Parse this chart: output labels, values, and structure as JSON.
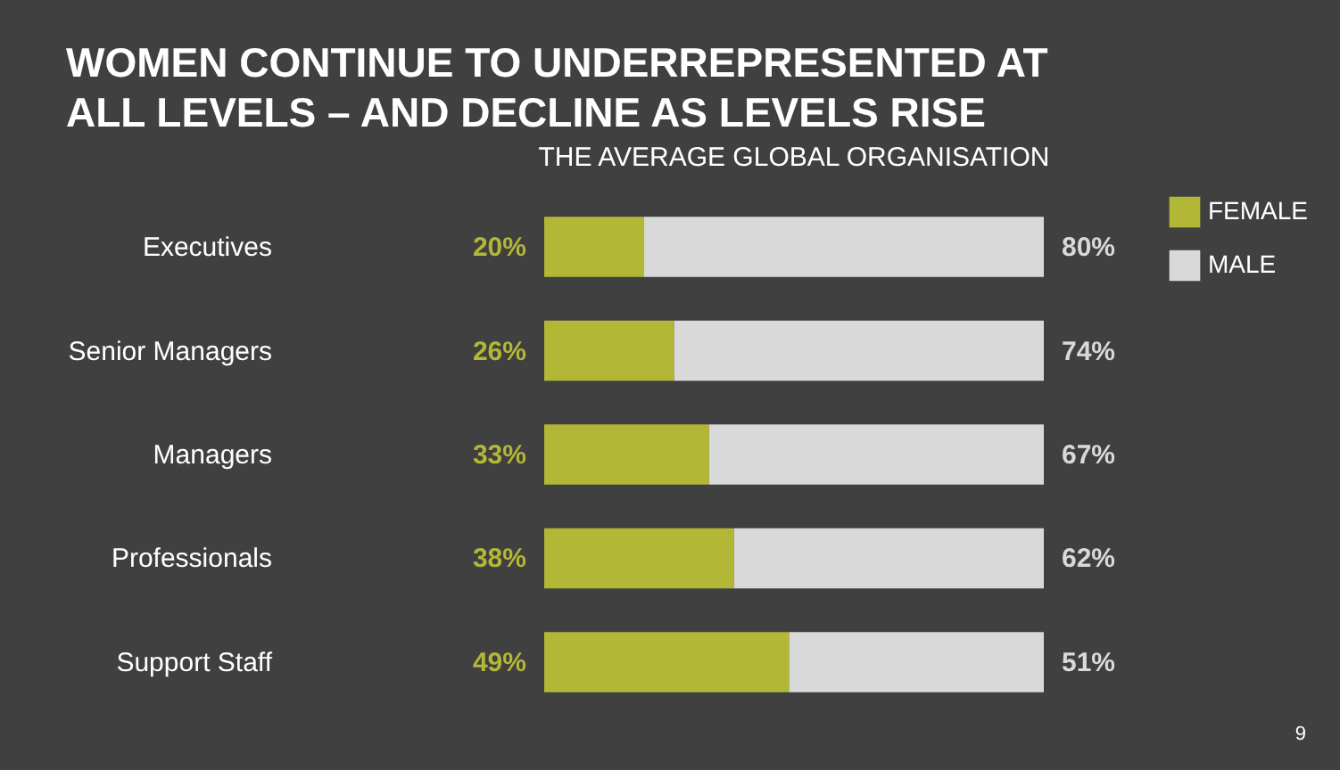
{
  "chart_data": {
    "type": "bar",
    "orientation": "horizontal",
    "stacked": true,
    "title": [
      "WOMEN CONTINUE TO UNDERREPRESENTED AT",
      "ALL LEVELS – AND DECLINE AS LEVELS RISE"
    ],
    "subtitle": "THE AVERAGE GLOBAL ORGANISATION",
    "categories": [
      "Executives",
      "Senior Managers",
      "Managers",
      "Professionals",
      "Support Staff"
    ],
    "series": [
      {
        "name": "FEMALE",
        "color": "#b2b835",
        "values": [
          20,
          26,
          33,
          38,
          49
        ],
        "value_labels": [
          "20%",
          "26%",
          "33%",
          "38%",
          "49%"
        ]
      },
      {
        "name": "MALE",
        "color": "#d9d9d9",
        "values": [
          80,
          74,
          67,
          62,
          51
        ],
        "value_labels": [
          "80%",
          "74%",
          "67%",
          "62%",
          "51%"
        ]
      }
    ],
    "annotations": [
      "9"
    ],
    "legend": "right",
    "tick_labels": "y"
  }
}
